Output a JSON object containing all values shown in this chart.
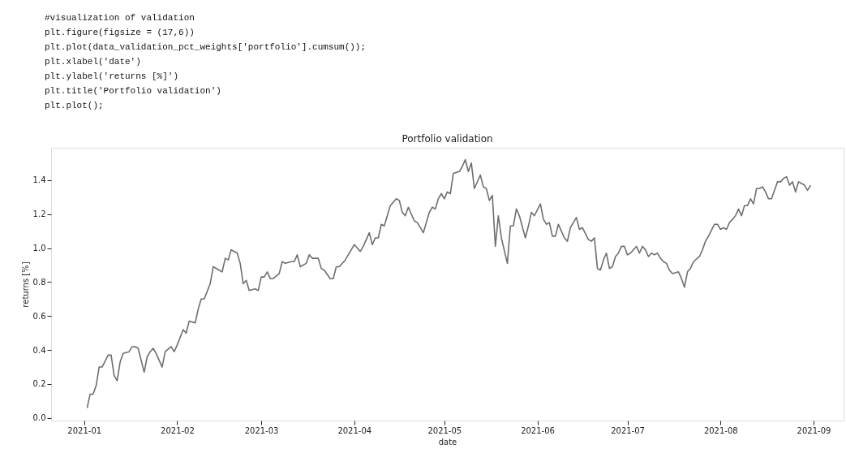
{
  "chart_data": {
    "type": "line",
    "title": "Portfolio validation",
    "xlabel": "date",
    "ylabel": "returns [%]",
    "annotations": [
      "#visualization of validation",
      "plt.figure(figsize = (17,6))",
      "plt.plot(data_validation_pct_weights['portfolio'].cumsum());",
      "plt.xlabel('date')",
      "plt.ylabel('returns [%]')",
      "plt.title('Portfolio validation')",
      "plt.plot();"
    ],
    "xlim": [
      "2020-12-21",
      "2021-09-11"
    ],
    "ylim": [
      -0.015,
      1.59
    ],
    "xticks": [
      {
        "value": "2021-01-01",
        "label": "2021-01"
      },
      {
        "value": "2021-02-01",
        "label": "2021-02"
      },
      {
        "value": "2021-03-01",
        "label": "2021-03"
      },
      {
        "value": "2021-04-01",
        "label": "2021-04"
      },
      {
        "value": "2021-05-01",
        "label": "2021-05"
      },
      {
        "value": "2021-06-01",
        "label": "2021-06"
      },
      {
        "value": "2021-07-01",
        "label": "2021-07"
      },
      {
        "value": "2021-08-01",
        "label": "2021-08"
      },
      {
        "value": "2021-09-01",
        "label": "2021-09"
      }
    ],
    "yticks": [
      {
        "value": 0,
        "label": "0.0"
      },
      {
        "value": 0.2,
        "label": "0.2"
      },
      {
        "value": 0.4,
        "label": "0.4"
      },
      {
        "value": 0.6,
        "label": "0.6"
      },
      {
        "value": 0.8,
        "label": "0.8"
      },
      {
        "value": 1,
        "label": "1.0"
      },
      {
        "value": 1.2,
        "label": "1.2"
      },
      {
        "value": 1.4,
        "label": "1.4"
      }
    ],
    "grid": false,
    "legend": false,
    "marker": "none",
    "line_style": "solid",
    "x": [
      "2021-01-02",
      "2021-01-03",
      "2021-01-04",
      "2021-01-05",
      "2021-01-06",
      "2021-01-07",
      "2021-01-09",
      "2021-01-10",
      "2021-01-11",
      "2021-01-12",
      "2021-01-13",
      "2021-01-14",
      "2021-01-16",
      "2021-01-17",
      "2021-01-18",
      "2021-01-19",
      "2021-01-21",
      "2021-01-22",
      "2021-01-23",
      "2021-01-24",
      "2021-01-25",
      "2021-01-27",
      "2021-01-28",
      "2021-01-30",
      "2021-01-31",
      "2021-02-01",
      "2021-02-03",
      "2021-02-04",
      "2021-02-05",
      "2021-02-07",
      "2021-02-08",
      "2021-02-09",
      "2021-02-10",
      "2021-02-12",
      "2021-02-13",
      "2021-02-15",
      "2021-02-16",
      "2021-02-17",
      "2021-02-18",
      "2021-02-19",
      "2021-02-20",
      "2021-02-21",
      "2021-02-22",
      "2021-02-23",
      "2021-02-24",
      "2021-02-25",
      "2021-02-27",
      "2021-02-28",
      "2021-03-01",
      "2021-03-02",
      "2021-03-03",
      "2021-03-04",
      "2021-03-05",
      "2021-03-07",
      "2021-03-08",
      "2021-03-09",
      "2021-03-11",
      "2021-03-12",
      "2021-03-13",
      "2021-03-14",
      "2021-03-16",
      "2021-03-17",
      "2021-03-18",
      "2021-03-20",
      "2021-03-21",
      "2021-03-22",
      "2021-03-24",
      "2021-03-25",
      "2021-03-26",
      "2021-03-27",
      "2021-03-29",
      "2021-03-30",
      "2021-04-01",
      "2021-04-03",
      "2021-04-04",
      "2021-04-06",
      "2021-04-07",
      "2021-04-08",
      "2021-04-09",
      "2021-04-10",
      "2021-04-11",
      "2021-04-13",
      "2021-04-15",
      "2021-04-16",
      "2021-04-17",
      "2021-04-18",
      "2021-04-19",
      "2021-04-21",
      "2021-04-22",
      "2021-04-24",
      "2021-04-26",
      "2021-04-27",
      "2021-04-28",
      "2021-04-29",
      "2021-04-30",
      "2021-05-01",
      "2021-05-02",
      "2021-05-03",
      "2021-05-04",
      "2021-05-06",
      "2021-05-07",
      "2021-05-08",
      "2021-05-09",
      "2021-05-10",
      "2021-05-11",
      "2021-05-13",
      "2021-05-14",
      "2021-05-15",
      "2021-05-16",
      "2021-05-17",
      "2021-05-18",
      "2021-05-19",
      "2021-05-20",
      "2021-05-22",
      "2021-05-23",
      "2021-05-24",
      "2021-05-25",
      "2021-05-26",
      "2021-05-28",
      "2021-05-29",
      "2021-05-30",
      "2021-05-31",
      "2021-06-02",
      "2021-06-03",
      "2021-06-04",
      "2021-06-05",
      "2021-06-06",
      "2021-06-07",
      "2021-06-08",
      "2021-06-09",
      "2021-06-10",
      "2021-06-11",
      "2021-06-12",
      "2021-06-14",
      "2021-06-15",
      "2021-06-16",
      "2021-06-18",
      "2021-06-19",
      "2021-06-20",
      "2021-06-21",
      "2021-06-22",
      "2021-06-23",
      "2021-06-24",
      "2021-06-25",
      "2021-06-26",
      "2021-06-27",
      "2021-06-28",
      "2021-06-29",
      "2021-06-30",
      "2021-07-01",
      "2021-07-02",
      "2021-07-04",
      "2021-07-05",
      "2021-07-06",
      "2021-07-07",
      "2021-07-08",
      "2021-07-09",
      "2021-07-10",
      "2021-07-11",
      "2021-07-12",
      "2021-07-13",
      "2021-07-14",
      "2021-07-15",
      "2021-07-16",
      "2021-07-18",
      "2021-07-19",
      "2021-07-20",
      "2021-07-21",
      "2021-07-22",
      "2021-07-23",
      "2021-07-25",
      "2021-07-26",
      "2021-07-27",
      "2021-07-28",
      "2021-07-30",
      "2021-07-31",
      "2021-08-01",
      "2021-08-02",
      "2021-08-03",
      "2021-08-04",
      "2021-08-05",
      "2021-08-06",
      "2021-08-07",
      "2021-08-08",
      "2021-08-09",
      "2021-08-10",
      "2021-08-11",
      "2021-08-12",
      "2021-08-13",
      "2021-08-14",
      "2021-08-15",
      "2021-08-16",
      "2021-08-17",
      "2021-08-18",
      "2021-08-19",
      "2021-08-20",
      "2021-08-21",
      "2021-08-22",
      "2021-08-23",
      "2021-08-24",
      "2021-08-25",
      "2021-08-26",
      "2021-08-27",
      "2021-08-28",
      "2021-08-29",
      "2021-08-30",
      "2021-08-31"
    ],
    "series": [
      {
        "color": "#6e6e6e",
        "values": [
          0.06,
          0.14,
          0.14,
          0.19,
          0.3,
          0.3,
          0.37,
          0.37,
          0.25,
          0.22,
          0.33,
          0.38,
          0.39,
          0.42,
          0.42,
          0.41,
          0.27,
          0.36,
          0.39,
          0.41,
          0.38,
          0.3,
          0.39,
          0.42,
          0.39,
          0.43,
          0.52,
          0.5,
          0.57,
          0.56,
          0.64,
          0.7,
          0.7,
          0.79,
          0.89,
          0.87,
          0.86,
          0.94,
          0.93,
          0.99,
          0.98,
          0.97,
          0.91,
          0.79,
          0.81,
          0.75,
          0.76,
          0.75,
          0.83,
          0.83,
          0.86,
          0.82,
          0.82,
          0.85,
          0.92,
          0.91,
          0.92,
          0.92,
          0.96,
          0.89,
          0.91,
          0.96,
          0.94,
          0.94,
          0.88,
          0.87,
          0.82,
          0.82,
          0.89,
          0.89,
          0.93,
          0.96,
          1.02,
          0.98,
          1.01,
          1.09,
          1.02,
          1.06,
          1.06,
          1.14,
          1.13,
          1.25,
          1.29,
          1.28,
          1.21,
          1.19,
          1.24,
          1.16,
          1.15,
          1.09,
          1.21,
          1.24,
          1.23,
          1.29,
          1.32,
          1.29,
          1.33,
          1.32,
          1.44,
          1.45,
          1.48,
          1.52,
          1.45,
          1.5,
          1.35,
          1.43,
          1.36,
          1.35,
          1.28,
          1.31,
          1.01,
          1.19,
          1.06,
          0.91,
          1.13,
          1.13,
          1.23,
          1.19,
          1.06,
          1.13,
          1.21,
          1.19,
          1.26,
          1.17,
          1.14,
          1.15,
          1.07,
          1.07,
          1.14,
          1.1,
          1.06,
          1.04,
          1.12,
          1.18,
          1.11,
          1.12,
          1.05,
          1.04,
          1.06,
          0.88,
          0.87,
          0.93,
          0.97,
          0.88,
          0.89,
          0.95,
          0.97,
          1.01,
          1.01,
          0.96,
          0.97,
          1.01,
          0.97,
          1.01,
          0.99,
          0.95,
          0.97,
          0.96,
          0.97,
          0.94,
          0.92,
          0.91,
          0.87,
          0.85,
          0.86,
          0.82,
          0.77,
          0.86,
          0.88,
          0.92,
          0.95,
          0.99,
          1.04,
          1.07,
          1.14,
          1.14,
          1.11,
          1.12,
          1.11,
          1.15,
          1.17,
          1.19,
          1.23,
          1.19,
          1.25,
          1.25,
          1.29,
          1.26,
          1.35,
          1.35,
          1.36,
          1.33,
          1.29,
          1.29,
          1.34,
          1.39,
          1.39,
          1.41,
          1.42,
          1.37,
          1.39,
          1.33,
          1.39,
          1.38,
          1.37,
          1.34,
          1.37
        ]
      }
    ]
  }
}
